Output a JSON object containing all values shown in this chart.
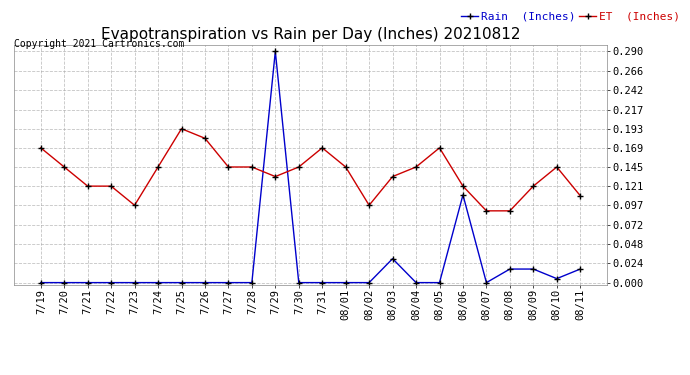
{
  "title": "Evapotranspiration vs Rain per Day (Inches) 20210812",
  "copyright": "Copyright 2021 Cartronics.com",
  "x_labels": [
    "7/19",
    "7/20",
    "7/21",
    "7/22",
    "7/23",
    "7/24",
    "7/25",
    "7/26",
    "7/27",
    "7/28",
    "7/29",
    "7/30",
    "7/31",
    "08/01",
    "08/02",
    "08/03",
    "08/04",
    "08/05",
    "08/06",
    "08/07",
    "08/08",
    "08/09",
    "08/10",
    "08/11"
  ],
  "rain_values": [
    0.0,
    0.0,
    0.0,
    0.0,
    0.0,
    0.0,
    0.0,
    0.0,
    0.0,
    0.0,
    0.29,
    0.0,
    0.0,
    0.0,
    0.0,
    0.03,
    0.0,
    0.0,
    0.11,
    0.0,
    0.017,
    0.017,
    0.005,
    0.017
  ],
  "et_values": [
    0.169,
    0.145,
    0.121,
    0.121,
    0.097,
    0.145,
    0.193,
    0.181,
    0.145,
    0.145,
    0.133,
    0.145,
    0.169,
    0.145,
    0.097,
    0.133,
    0.145,
    0.169,
    0.121,
    0.09,
    0.09,
    0.121,
    0.145,
    0.109
  ],
  "rain_color": "#0000cc",
  "et_color": "#cc0000",
  "marker_color": "#000000",
  "background_color": "#ffffff",
  "grid_color": "#aaaaaa",
  "ylim_min": -0.003,
  "ylim_max": 0.298,
  "yticks": [
    0.0,
    0.024,
    0.048,
    0.072,
    0.097,
    0.121,
    0.145,
    0.169,
    0.193,
    0.217,
    0.242,
    0.266,
    0.29
  ],
  "legend_rain_label": "Rain  (Inches)",
  "legend_et_label": "ET  (Inches)",
  "title_fontsize": 11,
  "copyright_fontsize": 7,
  "legend_fontsize": 8,
  "tick_fontsize": 7.5
}
